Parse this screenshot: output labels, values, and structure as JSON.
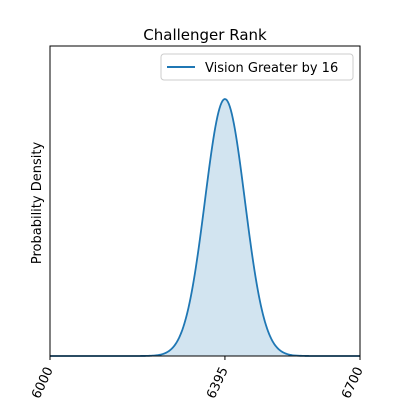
{
  "chart_data": {
    "type": "area",
    "title": "Challenger Rank",
    "xlabel": "",
    "ylabel": "Probability Density",
    "xlim": [
      6000,
      6700
    ],
    "xticks": [
      6000,
      6395,
      6700
    ],
    "xtick_labels": [
      "6000",
      "6395",
      "6700"
    ],
    "yticks_shown": false,
    "grid": false,
    "legend": "top-right",
    "series": [
      {
        "name": "Vision Greater by 16",
        "type": "normal-density",
        "mean": 6395,
        "std": 45,
        "color": "#1f77b4",
        "fill_color": "#1f77b4",
        "fill_opacity": 0.2
      }
    ]
  }
}
